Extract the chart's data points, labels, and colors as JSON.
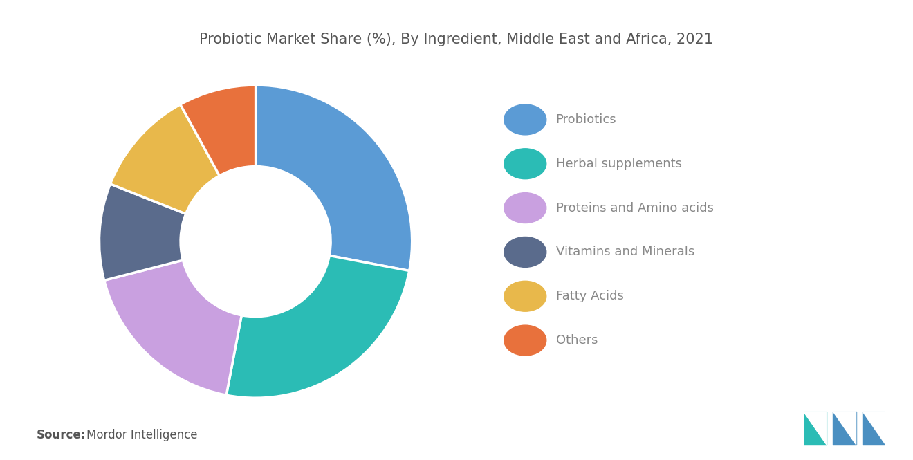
{
  "title": "Probiotic Market Share (%), By Ingredient, Middle East and Africa, 2021",
  "labels": [
    "Probiotics",
    "Herbal supplements",
    "Proteins and Amino acids",
    "Vitamins and Minerals",
    "Fatty Acids",
    "Others"
  ],
  "values": [
    28,
    25,
    18,
    10,
    11,
    8
  ],
  "colors": [
    "#5B9BD5",
    "#2BBCB5",
    "#C9A0E0",
    "#5A6B8C",
    "#E8B84B",
    "#E8713C"
  ],
  "background_color": "#ffffff",
  "title_color": "#555555",
  "legend_text_color": "#888888",
  "source_bold": "Source:",
  "source_normal": "  Mordor Intelligence",
  "title_fontsize": 15,
  "legend_fontsize": 13,
  "source_fontsize": 12
}
